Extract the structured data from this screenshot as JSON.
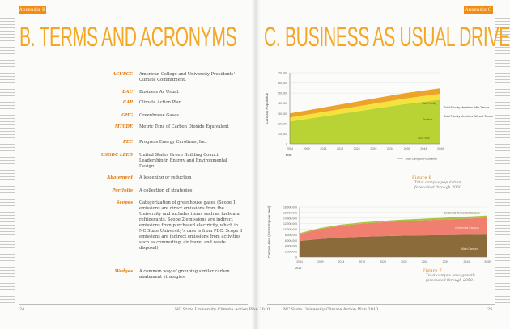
{
  "left": {
    "tab": "Appendix B",
    "title": "B. TERMS AND ACRONYMS",
    "terms": [
      {
        "key": "ACUPCC",
        "value": "American College and University Presidents' Climate Commitment."
      },
      {
        "key": "BAU",
        "value": "Business As Usual."
      },
      {
        "key": "CAP",
        "value": "Climate Action Plan"
      },
      {
        "key": "GHG",
        "value": "Greenhouse Gases"
      },
      {
        "key": "MTCDE",
        "value": "Metric Tons of Carbon Dioxide Equivalent"
      },
      {
        "key": "PEC",
        "value": "Progress Energy Carolinas, Inc."
      },
      {
        "key": "USGBC LEED",
        "value": "United States Green Building Council Leadership in Energy and Environmental Design"
      },
      {
        "key": "Abatement",
        "value": "A lessening or reduction"
      },
      {
        "key": "Portfolio",
        "value": "A collection of strategies"
      },
      {
        "key": "Scopes",
        "value": "Categorization of greenhouse gases (Scope 1 emissions are direct emissions from the University and includes items such as fuels and refrigerants. Scope 2 emissions are indirect emissions from purchased electricity, which in NC State University's case is from PEC. Scope 3 emissions are indirect emissions from activities such as commuting, air travel and waste disposal)"
      },
      {
        "key": "Wedges",
        "value": "A common way of grouping similar carbon abatement strategies"
      }
    ],
    "page_number": "24",
    "footer": "NC State University Climate Action Plan 2010"
  },
  "right": {
    "tab": "Appendix C",
    "title": "C. BUSINESS AS USUAL DRIVERS",
    "page_number": "25",
    "footer": "NC State University Climate Action Plan 2010",
    "figure6": {
      "label": "Figure 6",
      "caption": "Total campus population forecasted through 2050."
    },
    "figure7": {
      "label": "Figure 7",
      "caption": "Total campus area growth forecasted through 2050."
    }
  },
  "chart_data": [
    {
      "type": "area",
      "ylabel": "Campus Population",
      "xlabel": "Year",
      "x": [
        2004,
        2009,
        2014,
        2019,
        2024,
        2029,
        2034,
        2039,
        2044,
        2049
      ],
      "xticks": [
        "2004",
        "2009",
        "2014",
        "2019",
        "2024",
        "2029",
        "2034",
        "2039",
        "2044",
        "2049"
      ],
      "ylim": [
        0,
        70000
      ],
      "yticks": [
        "0",
        "10,000",
        "20,000",
        "30,000",
        "40,000",
        "50,000",
        "60,000",
        "70,000"
      ],
      "colors": {
        "students": "#b9d334",
        "without_tenure": "#f5e23a",
        "with_tenure": "#eda22a",
        "total_line": "#888888"
      },
      "series": [
        {
          "name": "Students",
          "values": [
            22000,
            24500,
            27000,
            29500,
            32000,
            34500,
            37000,
            39500,
            41500,
            43500
          ]
        },
        {
          "name": "Total Faculty Members Without Tenure",
          "values": [
            4000,
            4200,
            4400,
            4600,
            4800,
            5000,
            5200,
            5400,
            5600,
            5800
          ]
        },
        {
          "name": "Total Faculty Members With Tenure",
          "values": [
            4000,
            4200,
            4400,
            4600,
            4800,
            5000,
            5200,
            5300,
            5400,
            5500
          ]
        }
      ],
      "inline_labels": [
        "Total Faculty Members With Tenure",
        "Total Faculty Members Without Tenure",
        "Students",
        "Other Staff"
      ],
      "legend": "Total Campus Population",
      "legend_position": "bottom-right"
    },
    {
      "type": "area",
      "ylabel": "Campus Area (Gross Square Feet)",
      "xlabel": "Year",
      "x": [
        2004,
        2009,
        2014,
        2019,
        2024,
        2029,
        2034,
        2039,
        2044,
        2049
      ],
      "xticks": [
        "2004",
        "2009",
        "2014",
        "2019",
        "2024",
        "2029",
        "2034",
        "2039",
        "2044",
        "2049"
      ],
      "ylim": [
        0,
        18000000
      ],
      "yticks": [
        "0",
        "2,000,000",
        "4,000,000",
        "6,000,000",
        "8,000,000",
        "10,000,000",
        "12,000,000",
        "14,000,000",
        "16,000,000",
        "18,000,000"
      ],
      "colors": {
        "main": "#8c6b3a",
        "centennial": "#f07f70",
        "biomedical": "#a6c43c"
      },
      "series": [
        {
          "name": "Main Campus",
          "values": [
            5800000,
            6500000,
            7000000,
            7300000,
            7500000,
            7700000,
            7800000,
            7900000,
            8000000,
            8100000
          ]
        },
        {
          "name": "Centennial Campus",
          "values": [
            2500000,
            3600000,
            4300000,
            4700000,
            5000000,
            5200000,
            5400000,
            5600000,
            5800000,
            6000000
          ]
        },
        {
          "name": "Centennial Biomedical Campus",
          "values": [
            300000,
            350000,
            400000,
            450000,
            500000,
            550000,
            600000,
            650000,
            700000,
            800000
          ]
        }
      ]
    }
  ]
}
